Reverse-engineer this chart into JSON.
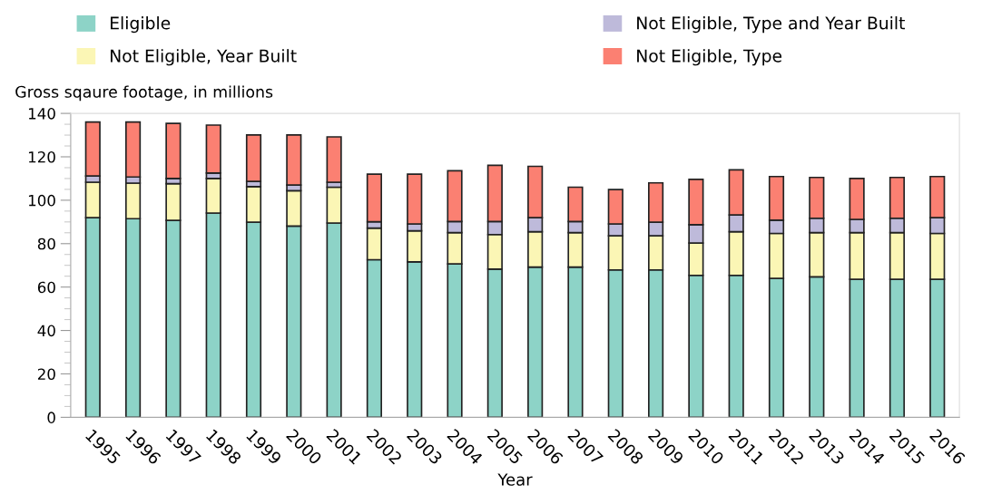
{
  "chart_data": {
    "type": "bar",
    "stacked": true,
    "ylabel": "Gross sqaure footage, in millions",
    "xlabel": "Year",
    "categories": [
      "1995",
      "1996",
      "1997",
      "1998",
      "1999",
      "2000",
      "2001",
      "2002",
      "2003",
      "2004",
      "2005",
      "2006",
      "2007",
      "2008",
      "2009",
      "2010",
      "2011",
      "2012",
      "2013",
      "2014",
      "2015",
      "2016"
    ],
    "series": [
      {
        "name": "Eligible",
        "color": "#8dd3c7",
        "values": [
          92.0,
          91.5,
          90.7,
          94.1,
          89.9,
          88.1,
          89.5,
          72.6,
          71.6,
          70.7,
          68.3,
          69.2,
          69.2,
          67.9,
          67.9,
          65.4,
          65.4,
          64.0,
          64.7,
          63.6,
          63.6,
          63.6
        ]
      },
      {
        "name": "Not Eligible, Year Built",
        "color": "#fbf6b5",
        "values": [
          16.3,
          16.4,
          16.9,
          15.9,
          16.4,
          16.3,
          16.5,
          14.6,
          14.3,
          14.4,
          15.9,
          16.3,
          15.9,
          15.7,
          15.7,
          14.9,
          20.1,
          20.7,
          20.4,
          21.5,
          21.5,
          21.1
        ]
      },
      {
        "name": "Not Eligible, Type and Year Built",
        "color": "#bebada",
        "values": [
          2.9,
          2.8,
          2.4,
          2.5,
          2.4,
          2.6,
          2.3,
          2.9,
          3.2,
          5.1,
          6.0,
          6.5,
          5.1,
          5.5,
          6.3,
          8.4,
          7.7,
          6.1,
          6.6,
          6.1,
          6.6,
          7.3
        ]
      },
      {
        "name": "Not Eligible, Type",
        "color": "#fb8072",
        "values": [
          24.8,
          25.3,
          25.4,
          22.1,
          21.4,
          23.1,
          20.9,
          21.9,
          22.9,
          23.4,
          25.9,
          23.6,
          15.8,
          15.8,
          18.1,
          20.9,
          20.8,
          20.1,
          18.8,
          18.8,
          18.8,
          18.9
        ]
      }
    ],
    "ylim": [
      0,
      140
    ],
    "yticks": [
      0,
      20,
      40,
      60,
      80,
      100,
      120,
      140
    ],
    "grid": false,
    "legend": "top"
  }
}
